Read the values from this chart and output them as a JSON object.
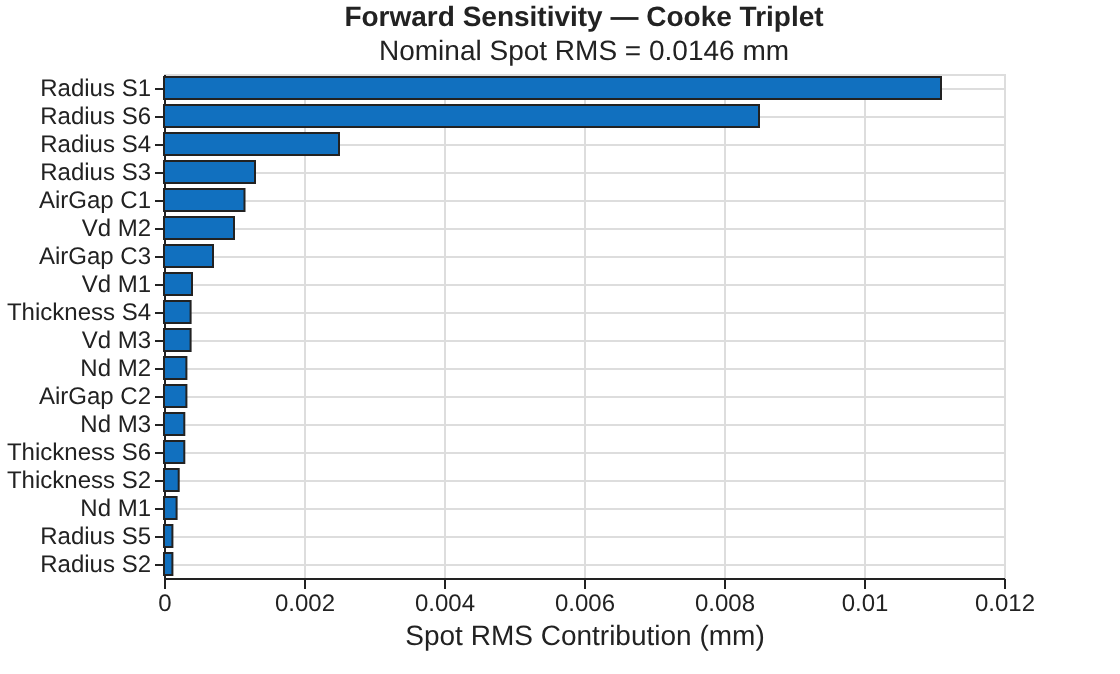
{
  "chart_data": {
    "type": "bar",
    "orientation": "horizontal",
    "title": "Forward Sensitivity — Cooke Triplet",
    "subtitle": "Nominal Spot RMS = 0.0146 mm",
    "xlabel": "Spot RMS Contribution (mm)",
    "categories": [
      "Radius S1",
      "Radius S6",
      "Radius S4",
      "Radius S3",
      "AirGap C1",
      "Vd M2",
      "AirGap C3",
      "Vd M1",
      "Thickness S4",
      "Vd M3",
      "Nd M2",
      "AirGap C2",
      "Nd M3",
      "Thickness S6",
      "Thickness S2",
      "Nd M1",
      "Radius S5",
      "Radius S2"
    ],
    "values": [
      0.0111,
      0.0085,
      0.0025,
      0.0013,
      0.00115,
      0.001,
      0.0007,
      0.0004,
      0.00038,
      0.00038,
      0.00032,
      0.00032,
      0.00029,
      0.00029,
      0.00021,
      0.00018,
      0.00012,
      0.00012
    ],
    "color": "#1170bf",
    "xlim": [
      0,
      0.012
    ],
    "xticks": [
      0,
      0.002,
      0.004,
      0.006,
      0.008,
      0.01,
      0.012
    ],
    "grid": true
  }
}
